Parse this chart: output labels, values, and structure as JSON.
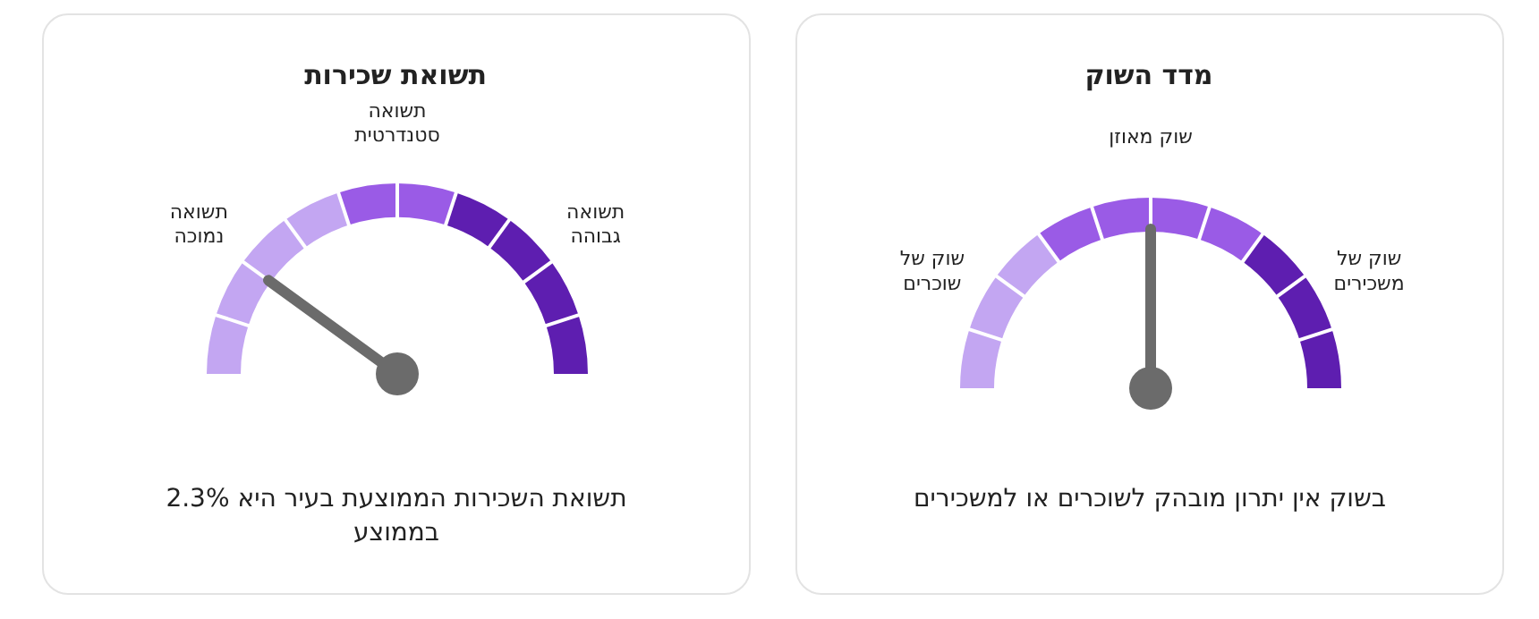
{
  "chart_data": [
    {
      "type": "donut",
      "title": "מדד השוק",
      "categories": [
        "שוק של\nשוכרים",
        "שוק מאוזן",
        "שוק של\nמשכירים"
      ],
      "values": [
        30,
        40,
        30
      ],
      "colors": [
        "#c3a6f2",
        "#9a5be6",
        "#5e1eb0"
      ],
      "needle": "שוק מאוזן",
      "annotations": [
        "בשוק אין יתרון מובהק לשוכרים או למשכירים"
      ]
    },
    {
      "type": "donut",
      "title": "תשואת שכירות",
      "categories": [
        "תשואה\nנמוכה",
        "תשואה\nסטנדרטית",
        "תשואה\nגבוהה"
      ],
      "values": [
        40,
        20,
        40
      ],
      "colors": [
        "#c3a6f2",
        "#9a5be6",
        "#5e1eb0"
      ],
      "needle": "תשואה\nנמוכה",
      "annotations": [
        "תשואת השכירות הממוצעת בעיר היא 2.3% בממוצע"
      ]
    }
  ]
}
